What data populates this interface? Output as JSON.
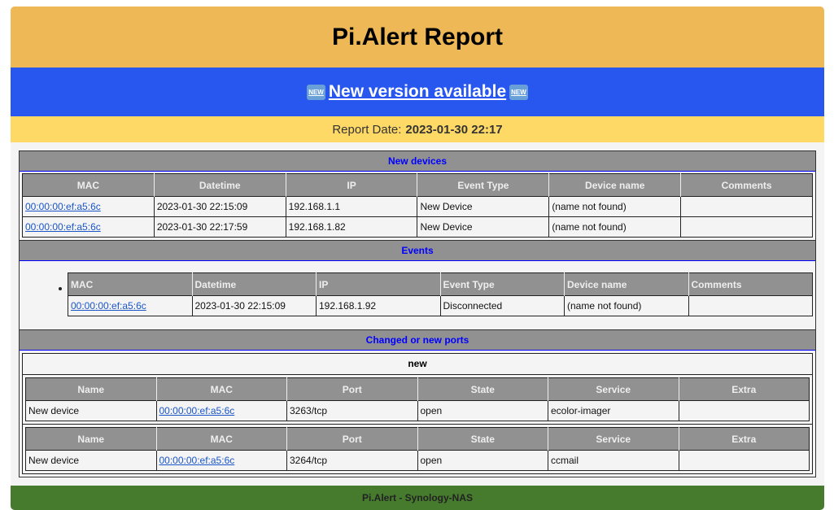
{
  "header": {
    "title": "Pi.Alert Report"
  },
  "version": {
    "text": " New version available ",
    "icon": "new-button-emoji"
  },
  "report": {
    "label": "Report Date:",
    "value": "2023-01-30 22:17"
  },
  "new_devices": {
    "title": "New devices",
    "columns": [
      "MAC",
      "Datetime",
      "IP",
      "Event Type",
      "Device name",
      "Comments"
    ],
    "rows": [
      [
        "00:00:00:ef:a5:6c",
        "2023-01-30 22:15:09",
        "192.168.1.1",
        "New Device",
        "(name not found)",
        ""
      ],
      [
        "00:00:00:ef:a5:6c",
        "2023-01-30 22:17:59",
        "192.168.1.82",
        "New Device",
        "(name not found)",
        ""
      ]
    ]
  },
  "events": {
    "title": "Events",
    "columns": [
      "MAC",
      "Datetime",
      "IP",
      "Event Type",
      "Device name",
      "Comments"
    ],
    "rows": [
      [
        "00:00:00:ef:a5:6c",
        "2023-01-30 22:15:09",
        "192.168.1.92",
        "Disconnected",
        "(name not found)",
        ""
      ]
    ]
  },
  "ports": {
    "title": "Changed or new ports",
    "group": "new",
    "columns": [
      "Name",
      "MAC",
      "Port",
      "State",
      "Service",
      "Extra"
    ],
    "tables": [
      [
        [
          "New device",
          "00:00:00:ef:a5:6c",
          "3263/tcp",
          "open",
          "ecolor-imager",
          ""
        ]
      ],
      [
        [
          "New device",
          "00:00:00:ef:a5:6c",
          "3264/tcp",
          "open",
          "ccmail",
          ""
        ]
      ]
    ]
  },
  "footer": {
    "text": "Pi.Alert - Synology-NAS"
  },
  "colors": {
    "header": "#eeb856",
    "version_bar": "#2757ef",
    "date_bar": "#ffd966",
    "footer": "#467b2e",
    "section": "#919191",
    "section_title": "#0000ff"
  }
}
